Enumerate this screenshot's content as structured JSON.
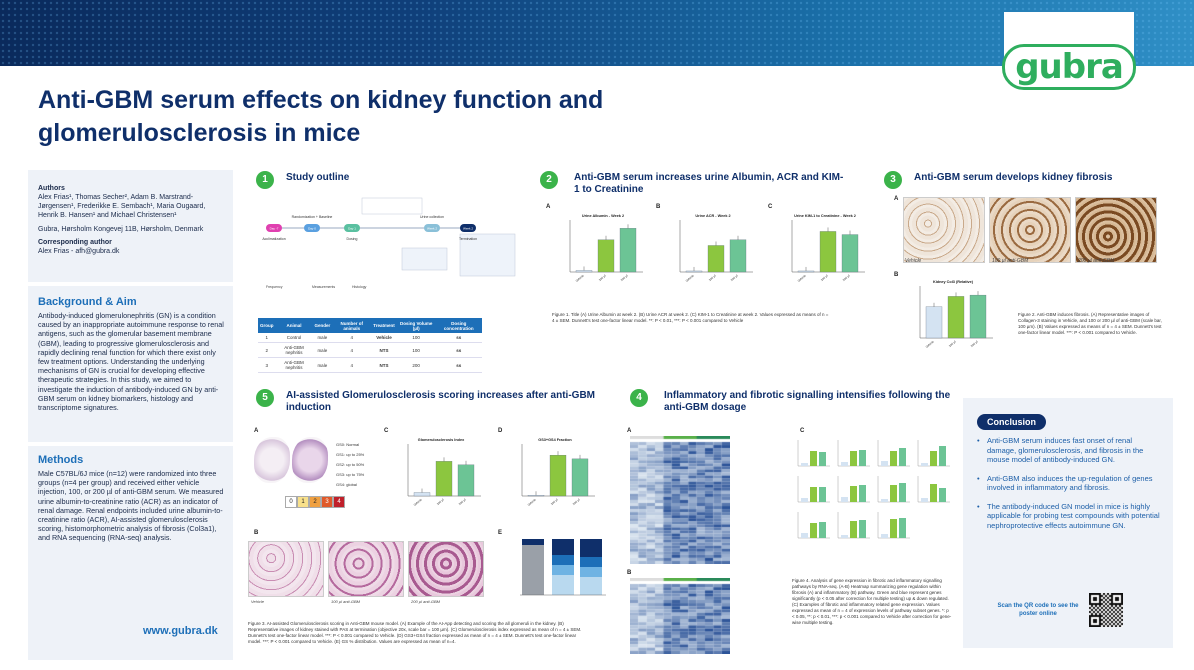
{
  "header": {
    "brand": "gubra",
    "title_line1": "Anti-GBM serum effects on kidney function and",
    "title_line2": "glomerulosclerosis in mice"
  },
  "sidebar": {
    "authors_head": "Authors",
    "authors": "Alex Frias¹, Thomas Secher², Adam B. Marstrand-Jørgensen¹, Frederikke E. Sembach¹, Maria Ougaard, Henrik B. Hansen¹ and Michael Christensen¹",
    "address": "Gubra, Hørsholm Kongevej 11B, Hørsholm, Denmark",
    "corr_head": "Corresponding author",
    "corr": "Alex Frias - afh@gubra.dk",
    "bg_title": "Background & Aim",
    "bg_text": "Antibody-induced glomerulonephritis (GN) is a condition caused by an inappropriate autoimmune response to renal antigens, such as the glomerular basement membrane (GBM), leading to progressive glomerulosclerosis and rapidly declining renal function for which there exist only few treatment options. Understanding the underlying mechanisms of GN is crucial for developing effective therapeutic strategies. In this study, we aimed to investigate the induction of antibody-induced GN by anti-GBM serum on kidney biomarkers, histology and transcriptome signatures.",
    "methods_title": "Methods",
    "methods_text": "Male C57BL/6J mice (n=12) were randomized into three groups (n=4 per group) and received either vehicle injection, 100, or 200 µl of anti-GBM serum. We measured urine albumin-to-creatinine ratio (ACR) as an indicator of renal damage. Renal endpoints included urine albumin-to-creatinine ratio (ACR), AI-assisted glomerulosclerosis scoring, histomorphometric analysis of fibrosis (Col3a1), and RNA sequencing (RNA-seq) analysis.",
    "www": "www.gubra.dk"
  },
  "sections": {
    "s1": {
      "num": "1",
      "title": "Study outline"
    },
    "s2": {
      "num": "2",
      "title": "Anti-GBM serum increases urine Albumin, ACR and KIM-1 to Creatinine"
    },
    "s3": {
      "num": "3",
      "title": "Anti-GBM serum develops kidney fibrosis"
    },
    "s4": {
      "num": "4",
      "title": "Inflammatory and fibrotic signalling intensifies following the anti-GBM dosage"
    },
    "s5": {
      "num": "5",
      "title": "AI-assisted Glomerulosclerosis scoring increases after anti-GBM induction"
    }
  },
  "study_table": {
    "headers": [
      "Group",
      "Animal",
      "Gender",
      "Number of animals",
      "Treatment",
      "Dosing Volume (µl)",
      "Dosing concentration"
    ],
    "rows": [
      [
        "1",
        "Control",
        "male",
        "4",
        "Vehicle",
        "100",
        "ss"
      ],
      [
        "2",
        "Anti-GBM nephritis",
        "male",
        "4",
        "NTS",
        "100",
        "ss"
      ],
      [
        "3",
        "Anti-GBM nephritis",
        "male",
        "4",
        "NTS",
        "200",
        "ss"
      ]
    ]
  },
  "timeline": {
    "steps": [
      "Acclimatization",
      "Randomization + Baseline",
      "Dosing",
      "Urine collection",
      "Termination"
    ],
    "nodes": [
      "Day -7",
      "Day 0",
      "Day 1",
      "Week 2",
      "Week 2"
    ]
  },
  "fig1_caption": "Figure 1. Title (A) Urine Albumin at week 2. (B) Urine ACR at week 2. (C) KIM-1 to Creatinine at week 2. Values expressed as means of n = 4 ± SEM. Dunnett's test one-factor linear model. **: P < 0.01, ***: P < 0.001 compared to Vehicle",
  "fig2_caption": "Figure 2. Anti-GBM induces fibrosis. (A) Representative images of Collagen-3 staining in Vehicle, and 100 or 200 µl of anti-GBM (scale bar, 100 µm). (B) Values expressed as means of n = 4 ± SEM. Dunnett's test one-factor linear model. ***: P < 0.001 compared to Vehicle.",
  "fig3_caption": "Figure 3. AI-assisted Glomerulosclerosis scoring in Anti-GBM mouse model. (A) Example of the AI-App detecting and scoring the all glomeruli in the kidney. (B) Representative images of kidney stained with PAS at termination (objective 20x, scale bar = 100 µm). (C) Glomerulosclerosis index expressed as mean of n = 4 ± SEM. Dunnett's test one-factor linear model. ***: P < 0.001 compared to Vehicle. (D) GS3+GS4 fraction expressed as mean of n = 4 ± SEM. Dunnett's test one-factor linear model. ***: P < 0.001 compared to Vehicle. (E) GS % distribution. Values are expressed as mean of n=4.",
  "fig4_caption": "Figure 4. Analysis of gene expression in fibrotic and inflammatory signalling pathways by RNA-seq. (A-B) Heatmap summarizing gene regulation within fibrosis (A) and inflammatory (B) pathway. Green and blue represent genes significantly (p < 0.05 after correction for multiple testing) up & down regulated. (C) Examples of fibrotic and inflammatory related gene expression. Values expressed as mean of n = 4 of expression levels of pathway subset genes. *: p < 0.05, **: p < 0.01, ***: p < 0.001 compared to Vehicle after correction for gene-wise multiple testing.",
  "histo_labels": {
    "s3": [
      "Vehicle",
      "100 µl anti-GBM",
      "200 µl anti-GBM"
    ],
    "s5": [
      "Vehicle",
      "100 µl anti-GBM",
      "200 µl anti-GBM"
    ]
  },
  "gs_legend": [
    "GS0: Normal",
    "GS1: up to 25%",
    "GS2: up to 50%",
    "GS3: up to 75%",
    "GS4: global"
  ],
  "gs_scores": [
    "0",
    "1",
    "2",
    "3",
    "4"
  ],
  "conclusion": {
    "title": "Conclusion",
    "items": [
      "Anti-GBM serum induces fast onset of renal damage, glomerulosclerosis, and fibrosis in the mouse model of antibody-induced GN.",
      "Anti-GBM also induces the up-regulation of genes involved in inflammatory and fibrosis.",
      "The antibody-induced GN model in mice is highly applicable for probing test compounds with potential nephroprotective effects autoimmune GN."
    ],
    "qr_text": "Scan the QR code to see the poster online"
  },
  "colors": {
    "navy": "#0f2f6a",
    "accent": "#1d6fb8",
    "green": "#3bb34a",
    "bar_light": "#d4e3f2",
    "bar_green": "#8cc63f",
    "bar_teal": "#6cc495"
  },
  "chart_data": [
    {
      "type": "bar",
      "panel": "A",
      "title": "Urine Albumin - Week 2",
      "categories": [
        "Vehicle",
        "100 µl",
        "200 µl"
      ],
      "values": [
        0.3,
        6.2,
        8.4
      ],
      "ylim": [
        0,
        10
      ]
    },
    {
      "type": "bar",
      "panel": "B",
      "title": "Urine ACR - Week 2",
      "categories": [
        "Vehicle",
        "100 µl",
        "200 µl"
      ],
      "values": [
        0.2,
        5.1,
        6.2
      ],
      "ylim": [
        0,
        10
      ]
    },
    {
      "type": "bar",
      "panel": "C",
      "title": "Urine KIM-1 to Creatinine - Week 2",
      "categories": [
        "Vehicle",
        "100 µl",
        "200 µl"
      ],
      "values": [
        0.2,
        7.8,
        7.2
      ],
      "ylim": [
        0,
        10
      ]
    },
    {
      "type": "bar",
      "panel": "3B",
      "title": "Kidney Col3 (Relative)",
      "categories": [
        "Vehicle",
        "100 µl",
        "200 µl"
      ],
      "values": [
        2.4,
        3.2,
        3.3
      ],
      "ylim": [
        0,
        4
      ]
    },
    {
      "type": "bar",
      "panel": "5C",
      "title": "Glomerulosclerosis Index",
      "categories": [
        "Vehicle",
        "100 µl",
        "200 µl"
      ],
      "values": [
        0.2,
        2.0,
        1.8
      ],
      "ylim": [
        0,
        3
      ]
    },
    {
      "type": "bar",
      "panel": "5D",
      "title": "GS3+GS4 Fraction",
      "categories": [
        "Vehicle",
        "100 µl",
        "200 µl"
      ],
      "values": [
        1,
        55,
        50
      ],
      "ylim": [
        0,
        70
      ]
    }
  ]
}
